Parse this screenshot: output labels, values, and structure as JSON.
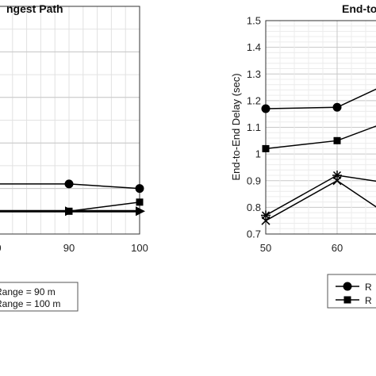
{
  "chart_data": [
    {
      "type": "line",
      "title": "ngest Path",
      "xlabel": "",
      "ylabel": "",
      "x_ticks": [
        "0",
        "90",
        "100"
      ],
      "xlim": [
        80,
        100
      ],
      "grid": true,
      "series": [
        {
          "name": "Range = 90 m",
          "marker": "square",
          "x": [
            80,
            90,
            100
          ],
          "y": [
            0.7,
            0.7,
            0.74
          ]
        },
        {
          "name": "Range = 100 m",
          "marker": "triangle-right",
          "x": [
            80,
            90,
            100
          ],
          "y": [
            0.7,
            0.7,
            0.7
          ]
        },
        {
          "name": "",
          "marker": "circle",
          "x": [
            80,
            90,
            100
          ],
          "y": [
            0.82,
            0.82,
            0.8
          ]
        }
      ],
      "legend": {
        "placement": "bottom-left",
        "entries": [
          "Range = 90 m",
          "Range = 100 m"
        ]
      }
    },
    {
      "type": "line",
      "title": "End-to",
      "xlabel": "",
      "ylabel": "End-to-End Delay (sec)",
      "ylim": [
        0.7,
        1.5
      ],
      "y_ticks": [
        "0.7",
        "0.8",
        "0.9",
        "1",
        "1.1",
        "1.2",
        "1.3",
        "1.4",
        "1.5"
      ],
      "x_ticks": [
        "50",
        "60"
      ],
      "xlim": [
        50,
        70
      ],
      "grid": true,
      "series": [
        {
          "name": "R",
          "marker": "circle",
          "x": [
            50,
            60,
            70
          ],
          "y": [
            1.17,
            1.175,
            1.3
          ]
        },
        {
          "name": "R",
          "marker": "square",
          "x": [
            50,
            60,
            70
          ],
          "y": [
            1.02,
            1.05,
            1.15
          ]
        },
        {
          "name": "",
          "marker": "star",
          "x": [
            50,
            60,
            70
          ],
          "y": [
            0.77,
            0.92,
            0.88
          ]
        },
        {
          "name": "",
          "marker": "x",
          "x": [
            50,
            60,
            70
          ],
          "y": [
            0.75,
            0.9,
            0.72
          ]
        }
      ],
      "legend": {
        "placement": "bottom-right",
        "entries": [
          "R",
          "R"
        ]
      }
    }
  ]
}
